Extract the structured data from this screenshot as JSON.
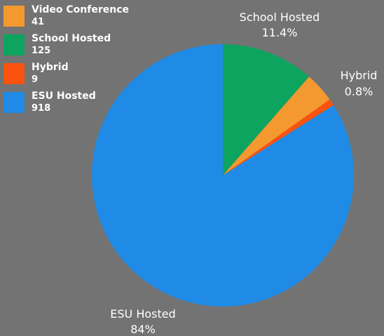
{
  "chart_data": {
    "type": "pie",
    "legend_position": "top-left",
    "slices": [
      {
        "name": "School Hosted",
        "value": 125,
        "percent_label": "11.4%",
        "color": "#0ca45e"
      },
      {
        "name": "Video Conference",
        "value": 41,
        "percent_label": "",
        "color": "#f49830"
      },
      {
        "name": "Hybrid",
        "value": 9,
        "percent_label": "0.8%",
        "color": "#f9530f"
      },
      {
        "name": "ESU Hosted",
        "value": 918,
        "percent_label": "84%",
        "color": "#1f8be6"
      }
    ]
  },
  "legend": [
    {
      "name": "Video Conference",
      "count": "41",
      "color": "#f49830"
    },
    {
      "name": "School Hosted",
      "count": "125",
      "color": "#0ca45e"
    },
    {
      "name": "Hybrid",
      "count": "9",
      "color": "#f9530f"
    },
    {
      "name": "ESU Hosted",
      "count": "918",
      "color": "#1f8be6"
    }
  ]
}
